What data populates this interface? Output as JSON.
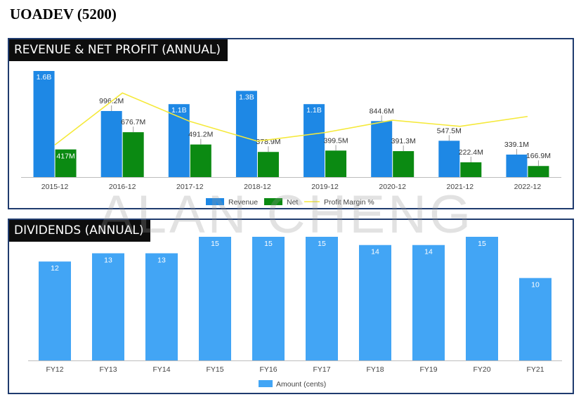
{
  "page": {
    "title": "UOADEV (5200)",
    "watermark": "ALAN CHENG"
  },
  "colors": {
    "revenue": "#1e88e5",
    "net": "#0b8a12",
    "margin": "#f5e93a",
    "dividend": "#42a5f5",
    "frame": "#1f3b6e"
  },
  "panels": {
    "revenue": {
      "header": "REVENUE & NET PROFIT (ANNUAL)"
    },
    "dividends": {
      "header": "DIVIDENDS (ANNUAL)"
    }
  },
  "chart_data": [
    {
      "type": "bar",
      "title": "REVENUE & NET PROFIT (ANNUAL)",
      "categories": [
        "2015-12",
        "2016-12",
        "2017-12",
        "2018-12",
        "2019-12",
        "2020-12",
        "2021-12",
        "2022-12"
      ],
      "series": [
        {
          "name": "Revenue",
          "values": [
            1600,
            996.2,
            1100,
            1300,
            1100,
            844.6,
            547.5,
            339.1
          ],
          "labels": [
            "1.6B",
            "996.2M",
            "1.1B",
            "1.3B",
            "1.1B",
            "844.6M",
            "547.5M",
            "339.1M"
          ]
        },
        {
          "name": "Net",
          "values": [
            417,
            676.7,
            491.2,
            378.9,
            399.5,
            391.3,
            222.4,
            166.9
          ],
          "labels": [
            "417M",
            "676.7M",
            "491.2M",
            "378.9M",
            "399.5M",
            "391.3M",
            "222.4M",
            "166.9M"
          ]
        },
        {
          "name": "Profit Margin %",
          "type": "line",
          "values": [
            26,
            68,
            45,
            29,
            36,
            46,
            41,
            49
          ]
        }
      ],
      "ylim": [
        0,
        1600
      ],
      "legend": [
        "Revenue",
        "Net",
        "Profit Margin %"
      ],
      "legend_position": "bottom"
    },
    {
      "type": "bar",
      "title": "DIVIDENDS (ANNUAL)",
      "categories": [
        "FY12",
        "FY13",
        "FY14",
        "FY15",
        "FY16",
        "FY17",
        "FY18",
        "FY19",
        "FY20",
        "FY21"
      ],
      "series": [
        {
          "name": "Amount (cents)",
          "values": [
            12,
            13,
            13,
            15,
            15,
            15,
            14,
            14,
            15,
            10
          ]
        }
      ],
      "ylim": [
        0,
        15
      ],
      "legend": [
        "Amount (cents)"
      ],
      "legend_position": "bottom"
    }
  ]
}
